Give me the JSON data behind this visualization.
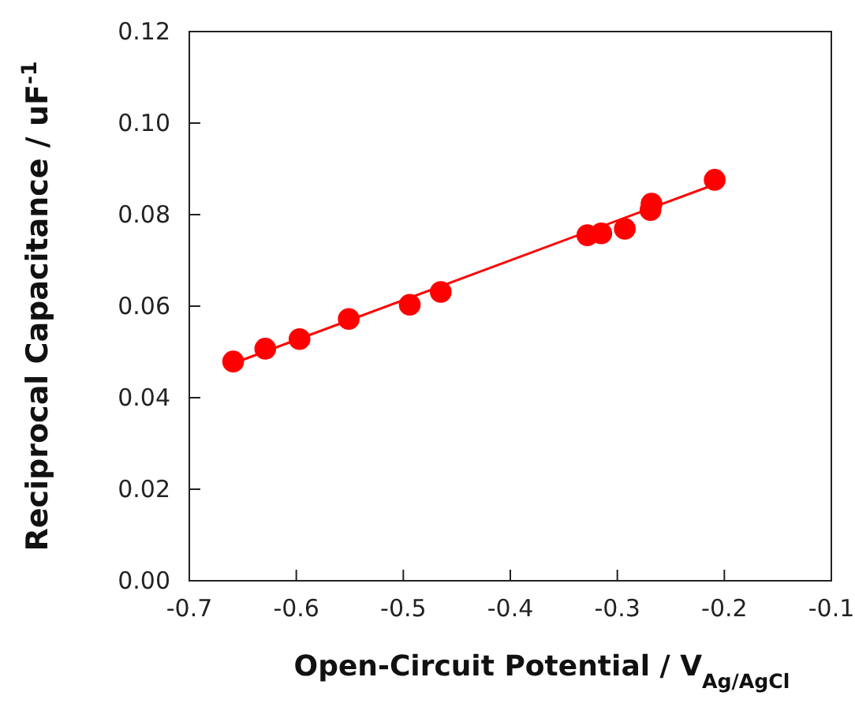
{
  "chart_data": {
    "type": "scatter",
    "xlabel": "Open-Circuit Potential / V$_{Ag/AgCl}$",
    "ylabel": "Reciprocal Capacitance / uF$^{-1}$",
    "xlim": [
      -0.7,
      -0.1
    ],
    "xticks": [
      -0.7,
      -0.6,
      -0.5,
      -0.4,
      -0.3,
      -0.2,
      -0.1
    ],
    "ylim": [
      0,
      0.12
    ],
    "yticks": [
      {
        "value": 0,
        "label": "0.00"
      },
      {
        "value": 0.02,
        "label": "0.02"
      },
      {
        "value": 0.04,
        "label": "0.04"
      },
      {
        "value": 0.06,
        "label": "0.06"
      },
      {
        "value": 0.08,
        "label": "0.08"
      },
      {
        "value": 0.1,
        "label": "0.10"
      },
      {
        "value": 0.12,
        "label": "0.12"
      }
    ],
    "grid": false,
    "series": [
      {
        "color": "#ff0000",
        "marker": "circle",
        "x": [
          -0.659,
          -0.629,
          -0.597,
          -0.551,
          -0.494,
          -0.465,
          -0.328,
          -0.315,
          -0.293,
          -0.269,
          -0.268,
          -0.209
        ],
        "values": [
          0.0479,
          0.0507,
          0.0528,
          0.0572,
          0.0603,
          0.0631,
          0.0755,
          0.0759,
          0.0769,
          0.081,
          0.0824,
          0.0876
        ]
      },
      {
        "type": "line",
        "color": "#ff0000",
        "marker": "none",
        "line_style": "solid",
        "x": [
          -0.659,
          -0.209
        ],
        "values": [
          0.0475,
          0.0866
        ]
      }
    ]
  }
}
